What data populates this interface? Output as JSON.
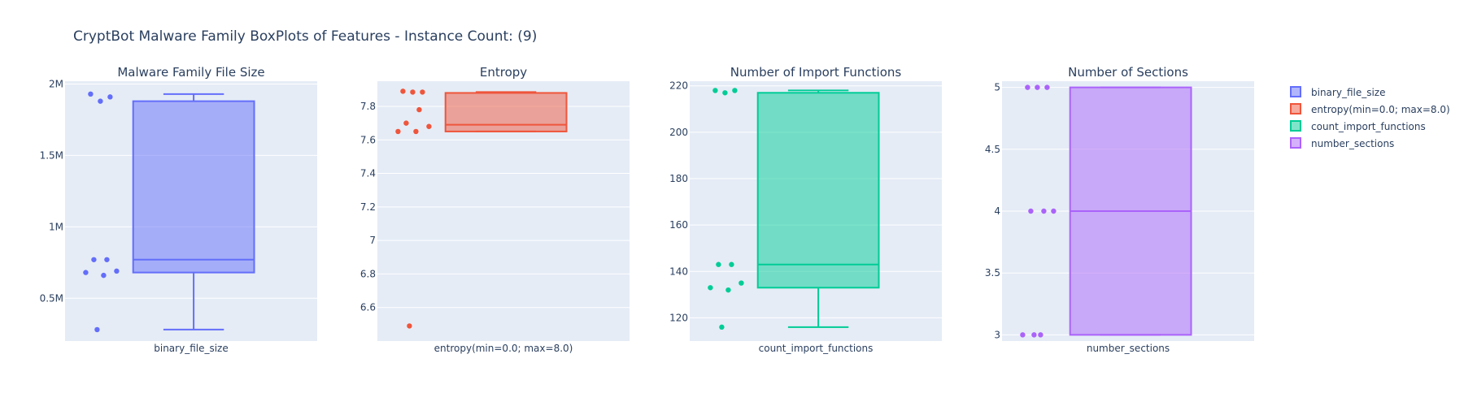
{
  "title": "CryptBot Malware Family BoxPlots of Features - Instance Count: (9)",
  "legend": {
    "placement": "right",
    "items": [
      {
        "label": "binary_file_size",
        "color": "#636efa"
      },
      {
        "label": "entropy(min=0.0; max=8.0)",
        "color": "#ef553b"
      },
      {
        "label": "count_import_functions",
        "color": "#00cc96"
      },
      {
        "label": "number_sections",
        "color": "#ab63fa"
      }
    ]
  },
  "chart_data": [
    {
      "type": "box",
      "title": "Malware Family File Size",
      "category": "binary_file_size",
      "color": "#636efa",
      "ylim": [
        200000,
        2020000
      ],
      "ticks": [
        {
          "v": 500000,
          "label": "0.5M"
        },
        {
          "v": 1000000,
          "label": "1M"
        },
        {
          "v": 1500000,
          "label": "1.5M"
        },
        {
          "v": 2000000,
          "label": "2M"
        }
      ],
      "box": {
        "min": 280000,
        "q1": 680000,
        "median": 770000,
        "q3": 1880000,
        "max": 1930000
      },
      "points": [
        1930000,
        1910000,
        1880000,
        770000,
        770000,
        690000,
        680000,
        660000,
        280000
      ]
    },
    {
      "type": "box",
      "title": "Entropy",
      "category": "entropy(min=0.0; max=8.0)",
      "color": "#ef553b",
      "ylim": [
        6.4,
        7.95
      ],
      "ticks": [
        {
          "v": 6.6,
          "label": "6.6"
        },
        {
          "v": 6.8,
          "label": "6.8"
        },
        {
          "v": 7,
          "label": "7"
        },
        {
          "v": 7.2,
          "label": "7.2"
        },
        {
          "v": 7.4,
          "label": "7.4"
        },
        {
          "v": 7.6,
          "label": "7.6"
        },
        {
          "v": 7.8,
          "label": "7.8"
        }
      ],
      "box": {
        "min": 7.65,
        "q1": 7.65,
        "median": 7.69,
        "q3": 7.88,
        "max": 7.885
      },
      "points": [
        7.89,
        7.885,
        7.885,
        7.78,
        7.7,
        7.68,
        7.65,
        7.65,
        6.49
      ]
    },
    {
      "type": "box",
      "title": "Number of Import Functions",
      "category": "count_import_functions",
      "color": "#00cc96",
      "ylim": [
        110,
        222
      ],
      "ticks": [
        {
          "v": 120,
          "label": "120"
        },
        {
          "v": 140,
          "label": "140"
        },
        {
          "v": 160,
          "label": "160"
        },
        {
          "v": 180,
          "label": "180"
        },
        {
          "v": 200,
          "label": "200"
        },
        {
          "v": 220,
          "label": "220"
        }
      ],
      "box": {
        "min": 116,
        "q1": 133,
        "median": 143,
        "q3": 217,
        "max": 218
      },
      "points": [
        218,
        218,
        217,
        143,
        143,
        135,
        133,
        132,
        116
      ]
    },
    {
      "type": "box",
      "title": "Number of Sections",
      "category": "number_sections",
      "color": "#ab63fa",
      "ylim": [
        2.95,
        5.05
      ],
      "ticks": [
        {
          "v": 3,
          "label": "3"
        },
        {
          "v": 3.5,
          "label": "3.5"
        },
        {
          "v": 4,
          "label": "4"
        },
        {
          "v": 4.5,
          "label": "4.5"
        },
        {
          "v": 5,
          "label": "5"
        }
      ],
      "box": {
        "min": 3,
        "q1": 3,
        "median": 4,
        "q3": 5,
        "max": 5
      },
      "points": [
        5,
        5,
        5,
        4,
        4,
        4,
        3,
        3,
        3
      ]
    }
  ]
}
